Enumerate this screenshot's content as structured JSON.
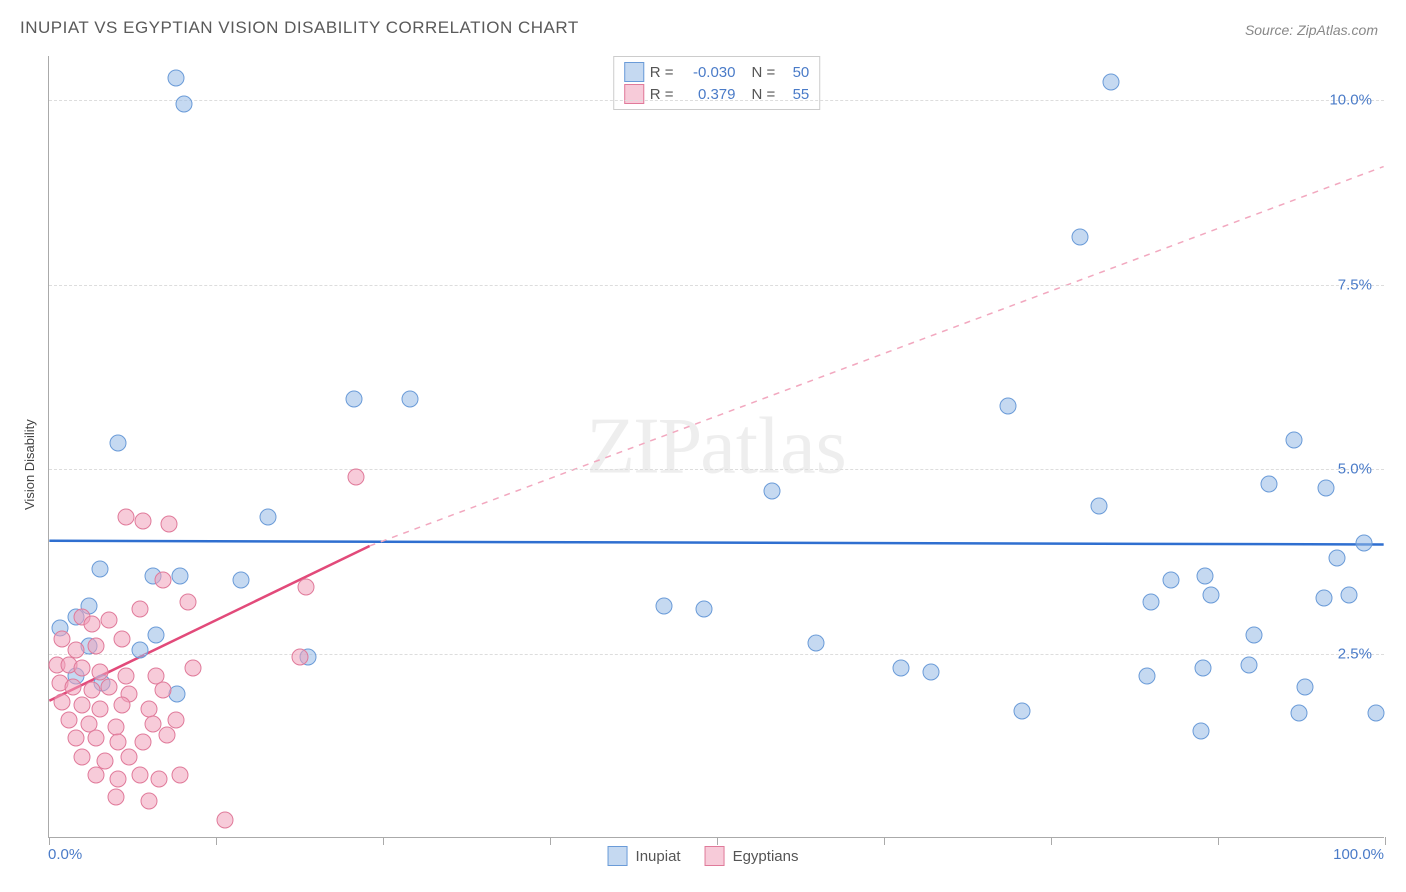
{
  "title": "INUPIAT VS EGYPTIAN VISION DISABILITY CORRELATION CHART",
  "source": "Source: ZipAtlas.com",
  "ylabel": "Vision Disability",
  "watermark": "ZIPatlas",
  "chart": {
    "type": "scatter",
    "background_color": "#ffffff",
    "grid_color": "#dddddd",
    "axis_color": "#aaaaaa",
    "xlim": [
      0,
      100
    ],
    "ylim": [
      0,
      10.6
    ],
    "x_min_label": "0.0%",
    "x_max_label": "100.0%",
    "xticks": [
      0,
      12.5,
      25,
      37.5,
      50,
      62.5,
      75,
      87.5,
      100
    ],
    "yticks": [
      {
        "v": 2.5,
        "label": "2.5%"
      },
      {
        "v": 5.0,
        "label": "5.0%"
      },
      {
        "v": 7.5,
        "label": "7.5%"
      },
      {
        "v": 10.0,
        "label": "10.0%"
      }
    ],
    "tick_label_color": "#4a7bc8",
    "tick_label_fontsize": 15,
    "point_radius": 8.5,
    "series": [
      {
        "name": "Inupiat",
        "fill_color": "rgba(150,185,230,0.55)",
        "stroke_color": "#6a9bd8",
        "R": "-0.030",
        "N": "50",
        "trend": {
          "x0": 0,
          "y0": 4.02,
          "x1": 100,
          "y1": 3.97,
          "color": "#2f6fd0",
          "width": 2.5,
          "dash": "none"
        },
        "points": [
          [
            9.5,
            10.3
          ],
          [
            10.1,
            9.95
          ],
          [
            79.5,
            10.25
          ],
          [
            77.2,
            8.15
          ],
          [
            5.2,
            5.35
          ],
          [
            22.8,
            5.95
          ],
          [
            27.0,
            5.95
          ],
          [
            93.2,
            5.4
          ],
          [
            71.8,
            5.85
          ],
          [
            78.6,
            4.5
          ],
          [
            54.1,
            4.7
          ],
          [
            91.3,
            4.8
          ],
          [
            95.6,
            4.75
          ],
          [
            16.4,
            4.35
          ],
          [
            3.8,
            3.65
          ],
          [
            7.8,
            3.55
          ],
          [
            9.8,
            3.55
          ],
          [
            3.0,
            3.15
          ],
          [
            2.0,
            3.0
          ],
          [
            14.4,
            3.5
          ],
          [
            84.0,
            3.5
          ],
          [
            86.5,
            3.55
          ],
          [
            87.0,
            3.3
          ],
          [
            96.4,
            3.8
          ],
          [
            98.4,
            4.0
          ],
          [
            46.0,
            3.15
          ],
          [
            49.0,
            3.1
          ],
          [
            82.5,
            3.2
          ],
          [
            95.4,
            3.25
          ],
          [
            97.3,
            3.3
          ],
          [
            0.8,
            2.85
          ],
          [
            3.0,
            2.6
          ],
          [
            6.8,
            2.55
          ],
          [
            8.0,
            2.75
          ],
          [
            19.4,
            2.45
          ],
          [
            57.4,
            2.65
          ],
          [
            63.8,
            2.3
          ],
          [
            66.0,
            2.25
          ],
          [
            90.2,
            2.75
          ],
          [
            2.0,
            2.2
          ],
          [
            4.0,
            2.1
          ],
          [
            9.6,
            1.95
          ],
          [
            82.2,
            2.2
          ],
          [
            86.4,
            2.3
          ],
          [
            89.8,
            2.35
          ],
          [
            94.0,
            2.05
          ],
          [
            72.8,
            1.72
          ],
          [
            86.2,
            1.45
          ],
          [
            93.6,
            1.7
          ],
          [
            99.3,
            1.7
          ]
        ]
      },
      {
        "name": "Egyptians",
        "fill_color": "rgba(240,160,185,0.55)",
        "stroke_color": "#e07a9a",
        "R": "0.379",
        "N": "55",
        "trend_solid": {
          "x0": 0,
          "y0": 1.85,
          "x1": 24,
          "y1": 3.95,
          "color": "#e24a7a",
          "width": 2.5
        },
        "trend_dash": {
          "x0": 24,
          "y0": 3.95,
          "x1": 100,
          "y1": 9.1,
          "color": "#f2a8bf",
          "width": 1.5
        },
        "points": [
          [
            23.0,
            4.9
          ],
          [
            5.8,
            4.35
          ],
          [
            9.0,
            4.25
          ],
          [
            7.0,
            4.3
          ],
          [
            8.5,
            3.5
          ],
          [
            10.4,
            3.2
          ],
          [
            19.2,
            3.4
          ],
          [
            2.5,
            3.0
          ],
          [
            3.2,
            2.9
          ],
          [
            4.5,
            2.95
          ],
          [
            6.8,
            3.1
          ],
          [
            1.0,
            2.7
          ],
          [
            2.0,
            2.55
          ],
          [
            3.5,
            2.6
          ],
          [
            5.5,
            2.7
          ],
          [
            18.8,
            2.45
          ],
          [
            0.6,
            2.35
          ],
          [
            1.5,
            2.35
          ],
          [
            2.5,
            2.3
          ],
          [
            3.8,
            2.25
          ],
          [
            5.8,
            2.2
          ],
          [
            8.0,
            2.2
          ],
          [
            10.8,
            2.3
          ],
          [
            0.8,
            2.1
          ],
          [
            1.8,
            2.05
          ],
          [
            3.2,
            2.0
          ],
          [
            4.5,
            2.05
          ],
          [
            6.0,
            1.95
          ],
          [
            8.5,
            2.0
          ],
          [
            1.0,
            1.85
          ],
          [
            2.5,
            1.8
          ],
          [
            3.8,
            1.75
          ],
          [
            5.5,
            1.8
          ],
          [
            7.5,
            1.75
          ],
          [
            1.5,
            1.6
          ],
          [
            3.0,
            1.55
          ],
          [
            5.0,
            1.5
          ],
          [
            7.8,
            1.55
          ],
          [
            9.5,
            1.6
          ],
          [
            2.0,
            1.35
          ],
          [
            3.5,
            1.35
          ],
          [
            5.2,
            1.3
          ],
          [
            7.0,
            1.3
          ],
          [
            8.8,
            1.4
          ],
          [
            2.5,
            1.1
          ],
          [
            4.2,
            1.05
          ],
          [
            6.0,
            1.1
          ],
          [
            3.5,
            0.85
          ],
          [
            5.2,
            0.8
          ],
          [
            6.8,
            0.85
          ],
          [
            8.2,
            0.8
          ],
          [
            9.8,
            0.85
          ],
          [
            5.0,
            0.55
          ],
          [
            7.5,
            0.5
          ],
          [
            13.2,
            0.25
          ]
        ]
      }
    ]
  },
  "legend_top": {
    "r_label": "R =",
    "n_label": "N ="
  },
  "legend_bottom": [
    "Inupiat",
    "Egyptians"
  ]
}
